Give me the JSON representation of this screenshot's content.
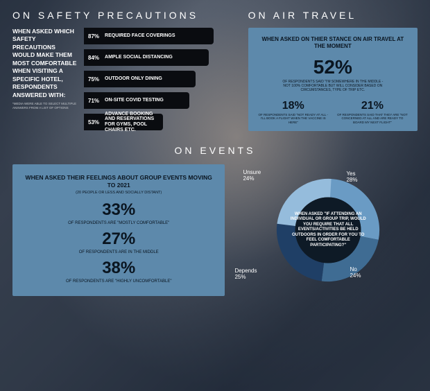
{
  "safety": {
    "title": "ON SAFETY PRECAUTIONS",
    "question": "WHEN ASKED WHICH SAFETY PRECAUTIONS WOULD MAKE THEM MOST COMFORTABLE WHEN VISITING A SPECIFIC HOTEL, RESPONDENTS ANSWERED WITH:",
    "footnote": "*MEDIA WERE ABLE TO SELECT MULTIPLE ANSWERS FROM A LIST OF OPTIONS",
    "bar_bg_color": "#0a0c10",
    "max_pct": 100,
    "bars": [
      {
        "pct": "87%",
        "width": 87,
        "label": "REQUIRED FACE COVERINGS"
      },
      {
        "pct": "84%",
        "width": 84,
        "label": "AMPLE SOCIAL DISTANCING"
      },
      {
        "pct": "75%",
        "width": 75,
        "label": "OUTDOOR ONLY DINING"
      },
      {
        "pct": "71%",
        "width": 71,
        "label": "ON-SITE COVID TESTING"
      },
      {
        "pct": "53%",
        "width": 53,
        "label": "ADVANCE BOOKING AND RESERVATIONS FOR GYMS, POOL CHAIRS ETC."
      }
    ]
  },
  "air": {
    "title": "ON AIR TRAVEL",
    "card_bg": "#5d89ab",
    "card_title": "WHEN ASKED ON THIER STANCE ON AIR TRAVEL AT THE MOMENT",
    "main_pct": "52%",
    "main_txt": "OF RESPONDENTS SAID \"I'M SOMEWHERE IN THE MIDDLE - NOT 100% COMFORTABLE BUT WILL CONSIDER BASED ON CIRCUMSTANCES, TYPE OF TRIP ETC.",
    "sub": [
      {
        "pct": "18%",
        "txt": "OF RESPONDENTS SAID \"NOT READY AT ALL - I'LL BOOK A FLIGHT WHEN THE VACCINE IS HERE\""
      },
      {
        "pct": "21%",
        "txt": "OF RESPONDENTS SAID THAT THEY ARE \"NOT CONCERNED AT ALL AND ARE READY TO BOARD MY NEXT FLIGHT\""
      }
    ]
  },
  "events": {
    "title": "ON EVENTS",
    "card_bg": "#5d89ab",
    "card_title": "WHEN ASKED THEIR FEELINGS ABOUT GROUP EVENTS MOVING TO 2021",
    "card_sub": "(20 PEOPLE OR LESS AND SOCIALLY DISTANT)",
    "items": [
      {
        "pct": "33%",
        "txt": "OF RESPONDENTS ARE \"MOSTLY COMFORTABLE\""
      },
      {
        "pct": "27%",
        "txt": "OF RESPONDENTS ARE IN THE MIDDLE"
      },
      {
        "pct": "38%",
        "txt": "OF RESPONDENTS ARE \"HIGHLY UNCOMFORTABLE\""
      }
    ],
    "donut": {
      "center_text": "WHEN ASKED \"IF ATTENDING AN INDIVIDUAL OR GROUP TRIP, WOULD YOU REQUIRE THAT ALL EVENTS/ACTIVITIES BE HELD OUTDOORS IN ORDER FOR YOU TO FEEL COMFORTABLE PARTICIPATING?\"",
      "inner_bg": "#0e1a26",
      "slices": [
        {
          "name": "Yes",
          "pct": 28,
          "color": "#6a9bc4",
          "label": "Yes",
          "label2": "28%"
        },
        {
          "name": "No",
          "pct": 24,
          "color": "#3f6c93",
          "label": "No",
          "label2": "24%"
        },
        {
          "name": "Depends",
          "pct": 25,
          "color": "#1f3f66",
          "label": "Depends",
          "label2": "25%"
        },
        {
          "name": "Unsure",
          "pct": 24,
          "color": "#95bcdc",
          "label": "Unsure",
          "label2": "24%"
        }
      ]
    }
  }
}
